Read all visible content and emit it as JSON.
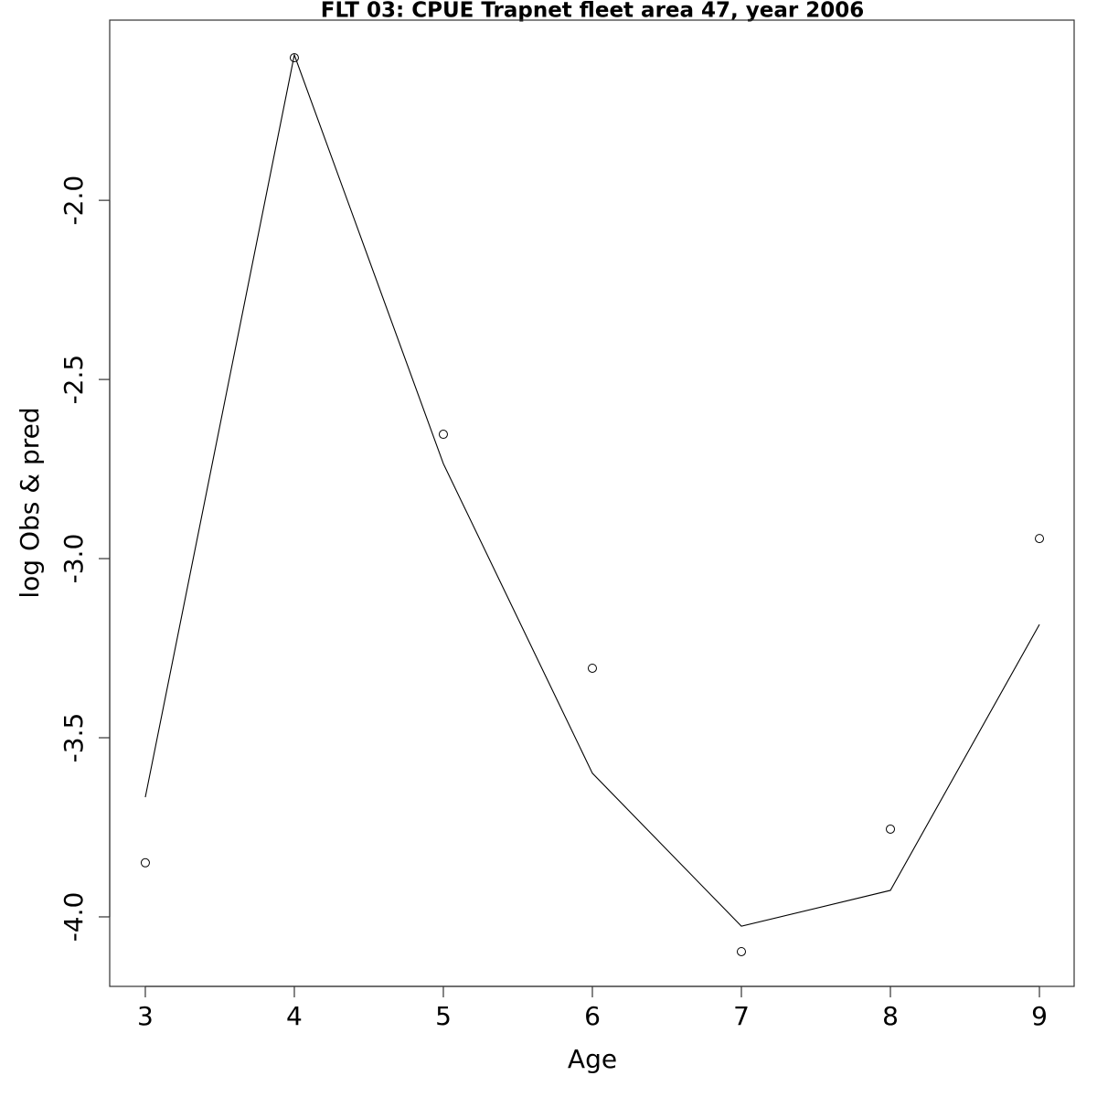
{
  "chart_data": {
    "type": "line",
    "title": "FLT 03: CPUE Trapnet fleet area 47, year 2006",
    "x_label": "Age",
    "y_label": "log Obs & pred",
    "x": [
      3,
      4,
      5,
      6,
      7,
      8,
      9
    ],
    "series": [
      {
        "mode": "points",
        "color": "#000000",
        "values": [
          -3.849,
          -1.602,
          -2.653,
          -3.306,
          -4.097,
          -3.755,
          -2.944
        ]
      },
      {
        "mode": "line",
        "color": "#000000",
        "values": [
          -3.666,
          -1.594,
          -2.735,
          -3.599,
          -4.026,
          -3.926,
          -3.184
        ]
      }
    ],
    "xlim": [
      2.761,
      9.233
    ],
    "ylim": [
      -4.194,
      -1.497
    ],
    "xticks": [
      3,
      4,
      5,
      6,
      7,
      8,
      9
    ],
    "yticks": [
      {
        "value": -4,
        "label": "-4.0"
      },
      {
        "value": -3.5,
        "label": "-3.5"
      },
      {
        "value": -3,
        "label": "-3.0"
      },
      {
        "value": -2.5,
        "label": "-2.5"
      },
      {
        "value": -2,
        "label": "-2.0"
      }
    ],
    "grid": false
  }
}
